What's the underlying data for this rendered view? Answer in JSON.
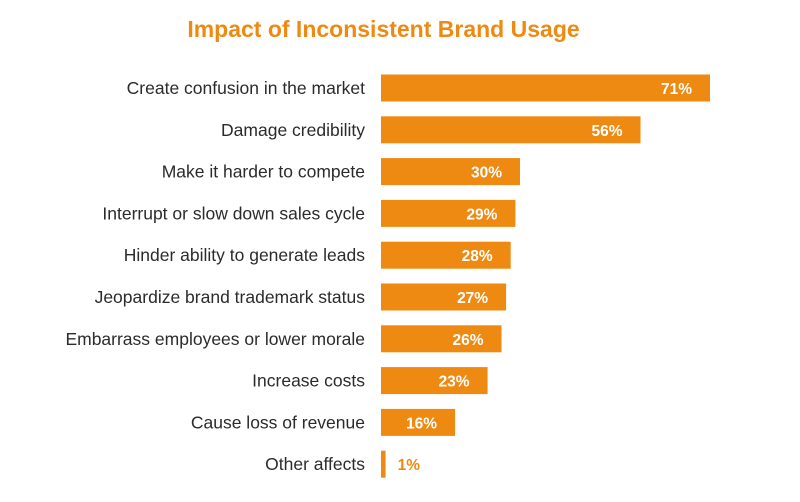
{
  "colors": {
    "accent": "#ee8a12",
    "title": "#ee8a12",
    "value_inside": "#ffffff"
  },
  "chart_data": {
    "type": "bar",
    "orientation": "horizontal",
    "title": "Impact of Inconsistent Brand Usage",
    "xlabel": "",
    "ylabel": "",
    "xlim": [
      0,
      100
    ],
    "grid": false,
    "legend": "none",
    "value_suffix": "%",
    "categories": [
      "Create confusion in the market",
      "Damage credibility",
      "Make it harder to compete",
      "Interrupt or slow down sales cycle",
      "Hinder ability to generate leads",
      "Jeopardize brand trademark status",
      "Embarrass employees or lower morale",
      "Increase costs",
      "Cause loss of revenue",
      "Other affects"
    ],
    "values": [
      71,
      56,
      30,
      29,
      28,
      27,
      26,
      23,
      16,
      1
    ],
    "value_labels": [
      "71%",
      "56%",
      "30%",
      "29%",
      "28%",
      "27%",
      "26%",
      "23%",
      "16%",
      "1%"
    ]
  }
}
